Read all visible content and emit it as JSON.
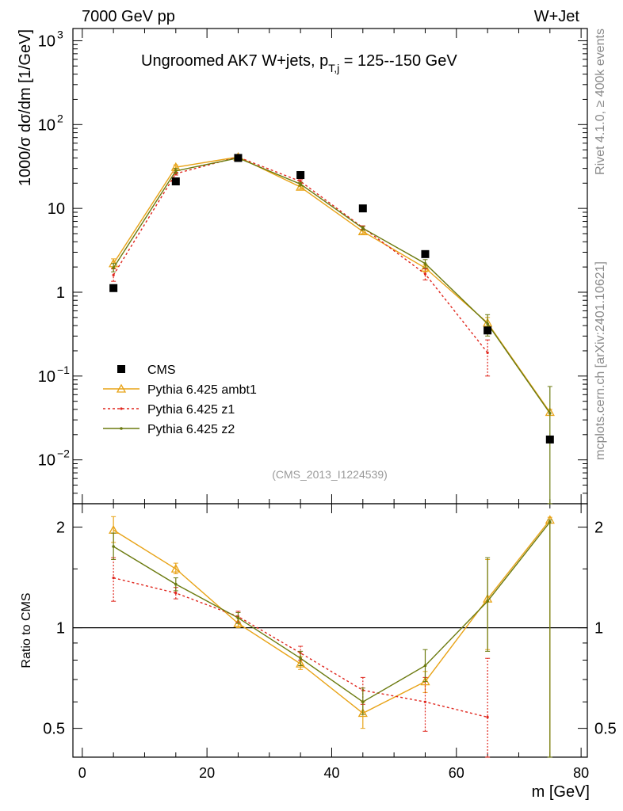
{
  "header": {
    "left": "7000 GeV pp",
    "right": "W+Jet"
  },
  "side": {
    "top": "Rivet 4.1.0, ≥ 400k events",
    "bottom": "mcplots.cern.ch [arXiv:2401.10621]"
  },
  "watermark": "(CMS_2013_I1224539)",
  "colors": {
    "data": "#000000",
    "ambt1": "#e8a317",
    "z1": "#e0261d",
    "z2": "#6b7a0f",
    "refline": "#000000"
  },
  "chart_data": [
    {
      "type": "scatter",
      "title_main": "Ungroomed AK7 W+jets, p",
      "title_sub": "T,j",
      "title_rest": " = 125--150 GeV",
      "ylabel": "1000/σ  dσ/dm [1/GeV]",
      "yscale": "log",
      "ylim": [
        0.003,
        1400
      ],
      "xlim": [
        -1.5,
        81
      ],
      "x": [
        5,
        15,
        25,
        35,
        45,
        55,
        65,
        75
      ],
      "yticks": [
        {
          "v": 0.01,
          "label": "10",
          "exp": "−2"
        },
        {
          "v": 0.1,
          "label": "10",
          "exp": "−1"
        },
        {
          "v": 1,
          "label": "1",
          "exp": ""
        },
        {
          "v": 10,
          "label": "10",
          "exp": ""
        },
        {
          "v": 100,
          "label": "10",
          "exp": "2"
        },
        {
          "v": 1000,
          "label": "10",
          "exp": "3"
        }
      ],
      "series": [
        {
          "name": "CMS",
          "key": "data",
          "values": [
            1.12,
            21,
            40,
            25,
            10,
            2.85,
            0.35,
            0.0175
          ]
        },
        {
          "name": "Pythia 6.425 ambt1",
          "key": "ambt1",
          "values": [
            2.2,
            31,
            41,
            18,
            5.3,
            1.95,
            0.43,
            0.037
          ],
          "err_lo": [
            1.95,
            29,
            39,
            17,
            5.0,
            1.75,
            0.36,
            0.034
          ],
          "err_hi": [
            2.5,
            33,
            43,
            19,
            5.6,
            2.15,
            0.5,
            0.04
          ]
        },
        {
          "name": "Pythia 6.425 z1",
          "key": "z1",
          "values": [
            1.6,
            26,
            41,
            21,
            5.9,
            1.65,
            0.19,
            0.0
          ],
          "err_lo": [
            1.35,
            25,
            39,
            20,
            5.6,
            1.4,
            0.1,
            0.0
          ],
          "err_hi": [
            1.9,
            27,
            43,
            22,
            6.2,
            1.9,
            0.27,
            0.0
          ]
        },
        {
          "name": "Pythia 6.425 z2",
          "key": "z2",
          "values": [
            1.95,
            28,
            40,
            19.5,
            5.8,
            2.2,
            0.42,
            0.036
          ],
          "err_lo": [
            1.75,
            26,
            38,
            18.5,
            5.5,
            1.95,
            0.3,
            0.0001
          ],
          "err_hi": [
            2.2,
            30,
            42,
            20.5,
            6.1,
            2.45,
            0.54,
            0.075
          ]
        }
      ]
    },
    {
      "type": "line",
      "ylabel": "Ratio to CMS",
      "xlabel": "m [GeV]",
      "yscale": "log",
      "ylim": [
        0.41,
        2.35
      ],
      "xlim": [
        -1.5,
        81
      ],
      "x": [
        5,
        15,
        25,
        35,
        45,
        55,
        65,
        75
      ],
      "xticks": [
        0,
        20,
        40,
        60,
        80
      ],
      "yticks": [
        {
          "v": 0.5,
          "label": "0.5"
        },
        {
          "v": 1,
          "label": "1"
        },
        {
          "v": 2,
          "label": "2"
        }
      ],
      "series": [
        {
          "name": "Pythia 6.425 ambt1",
          "key": "ambt1",
          "values": [
            1.96,
            1.5,
            1.03,
            0.78,
            0.555,
            0.69,
            1.22,
            2.1
          ],
          "err_lo": [
            1.8,
            1.45,
            1.0,
            0.75,
            0.5,
            0.64,
            0.86,
            0.0
          ],
          "err_hi": [
            2.15,
            1.56,
            1.07,
            0.82,
            0.6,
            0.74,
            1.6,
            2.14
          ]
        },
        {
          "name": "Pythia 6.425 z1",
          "key": "z1",
          "values": [
            1.41,
            1.27,
            1.08,
            0.84,
            0.65,
            0.6,
            0.54,
            0.0
          ],
          "err_lo": [
            1.2,
            1.22,
            1.04,
            0.8,
            0.59,
            0.49,
            0.38,
            0.0
          ],
          "err_hi": [
            1.62,
            1.32,
            1.12,
            0.88,
            0.71,
            0.71,
            0.81,
            0.0
          ]
        },
        {
          "name": "Pythia 6.425 z2",
          "key": "z2",
          "values": [
            1.75,
            1.35,
            1.07,
            0.81,
            0.6,
            0.77,
            1.2,
            2.07
          ],
          "err_lo": [
            1.6,
            1.29,
            1.03,
            0.77,
            0.55,
            0.69,
            0.85,
            0.0
          ],
          "err_hi": [
            1.92,
            1.41,
            1.11,
            0.85,
            0.66,
            0.86,
            1.62,
            2.1
          ]
        }
      ]
    }
  ]
}
